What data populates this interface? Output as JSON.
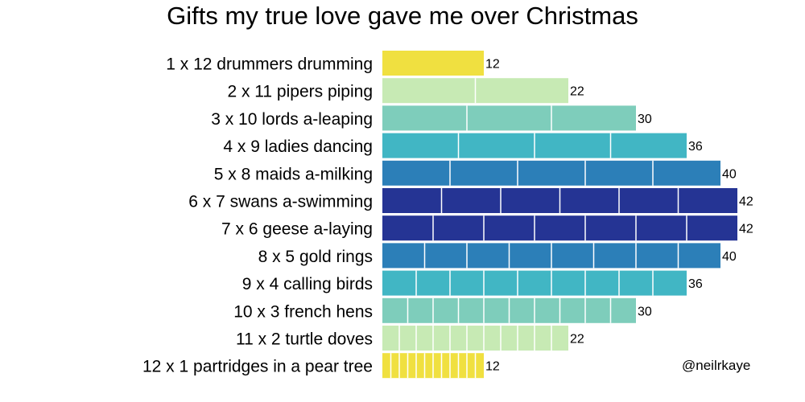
{
  "chart_data": {
    "type": "bar",
    "orientation": "horizontal",
    "stacked_segments": true,
    "title": "Gifts my true love gave me over Christmas",
    "xlabel": "",
    "ylabel": "",
    "grid": false,
    "credit": "@neilrkaye",
    "categories": [
      "1 x 12 drummers drumming",
      "2 x 11 pipers piping",
      "3 x 10 lords a-leaping",
      "4 x 9 ladies dancing",
      "5 x 8 maids a-milking",
      "6 x 7 swans a-swimming",
      "7 x 6 geese a-laying",
      "8 x 5 gold rings ",
      "9 x 4 calling birds",
      "10 x 3 french hens",
      "11 x 2 turtle doves",
      "12 x 1 partridges in a pear tree"
    ],
    "segments": [
      1,
      2,
      3,
      4,
      5,
      6,
      7,
      8,
      9,
      10,
      11,
      12
    ],
    "segment_size": [
      12,
      11,
      10,
      9,
      8,
      7,
      6,
      5,
      4,
      3,
      2,
      1
    ],
    "values": [
      12,
      22,
      30,
      36,
      40,
      42,
      42,
      40,
      36,
      30,
      22,
      12
    ],
    "value_labels": [
      "12",
      "22",
      "30",
      "36",
      "40",
      "42",
      "42",
      "40",
      "36",
      "30",
      "22",
      "12"
    ],
    "colors": [
      "#f0e040",
      "#c7eab4",
      "#7ecdbb",
      "#41b6c4",
      "#2c7fb8",
      "#253494",
      "#253494",
      "#2c7fb8",
      "#41b6c4",
      "#7ecdbb",
      "#c7eab4",
      "#f0e040"
    ]
  }
}
